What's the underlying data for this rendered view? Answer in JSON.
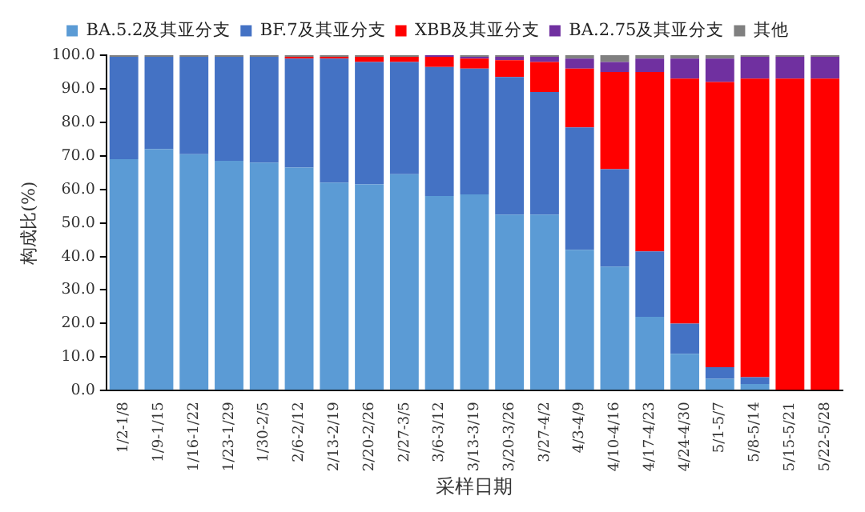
{
  "chart_data": {
    "type": "bar",
    "stacked": true,
    "xlabel": "采样日期",
    "ylabel": "构成比(%)",
    "categories": [
      "1/2-1/8",
      "1/9-1/15",
      "1/16-1/22",
      "1/23-1/29",
      "1/30-2/5",
      "2/6-2/12",
      "2/13-2/19",
      "2/20-2/26",
      "2/27-3/5",
      "3/6-3/12",
      "3/13-3/19",
      "3/20-3/26",
      "3/27-4/2",
      "4/3-4/9",
      "4/10-4/16",
      "4/17-4/23",
      "4/24-4/30",
      "5/1-5/7",
      "5/8-5/14",
      "5/15-5/21",
      "5/22-5/28"
    ],
    "series": [
      {
        "name": "BA.5.2及其亚分支",
        "color": "#5b9bd5",
        "values": [
          69,
          72,
          70.5,
          68.5,
          68,
          66.5,
          62,
          61.5,
          64.5,
          58,
          58.5,
          52.5,
          52.5,
          42,
          37,
          22,
          11,
          3.5,
          2,
          0,
          0
        ]
      },
      {
        "name": "BF.7及其亚分支",
        "color": "#4472c4",
        "values": [
          30.5,
          27.5,
          29,
          31,
          31.5,
          32.5,
          37,
          36.5,
          33.5,
          38.5,
          37.5,
          41,
          36.5,
          36.5,
          29,
          19.5,
          9,
          3.5,
          2,
          0,
          0
        ]
      },
      {
        "name": "XBB及其亚分支",
        "color": "#ff0000",
        "values": [
          0,
          0,
          0,
          0,
          0,
          0.5,
          0.5,
          1.5,
          1.5,
          3,
          3,
          5,
          9,
          17.5,
          29,
          53.5,
          73,
          85,
          89,
          93,
          93
        ]
      },
      {
        "name": "BA.2.75及其亚分支",
        "color": "#7030a0",
        "values": [
          0,
          0,
          0,
          0,
          0,
          0,
          0,
          0,
          0,
          0.5,
          0.5,
          1,
          1.5,
          3,
          3,
          4,
          6,
          7,
          6.5,
          6.5,
          6.5
        ]
      },
      {
        "name": "其他",
        "color": "#808080",
        "values": [
          0.5,
          0.5,
          0.5,
          0.5,
          0.5,
          0.5,
          0.5,
          0.5,
          0.5,
          0,
          0.5,
          0.5,
          0.5,
          1,
          2,
          1,
          1,
          1,
          0.5,
          0.5,
          0.5
        ]
      }
    ],
    "ylim": [
      0,
      100
    ],
    "yticks": [
      {
        "value": 0,
        "label": "0.0"
      },
      {
        "value": 10,
        "label": "10.0"
      },
      {
        "value": 20,
        "label": "20.0"
      },
      {
        "value": 30,
        "label": "30.0"
      },
      {
        "value": 40,
        "label": "40.0"
      },
      {
        "value": 50,
        "label": "50.0"
      },
      {
        "value": 60,
        "label": "60.0"
      },
      {
        "value": 70,
        "label": "70.0"
      },
      {
        "value": 80,
        "label": "80.0"
      },
      {
        "value": 90,
        "label": "90.0"
      },
      {
        "value": 100,
        "label": "100.0"
      }
    ],
    "grid": false,
    "legend": "top"
  }
}
